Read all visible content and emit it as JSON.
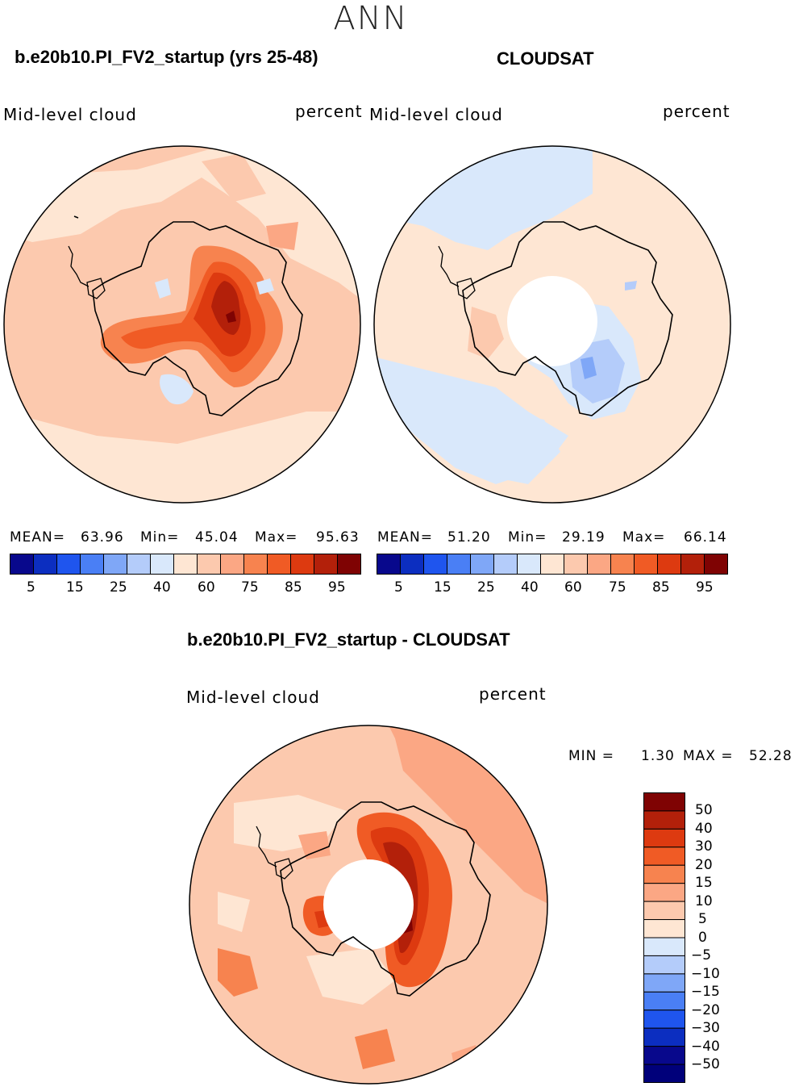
{
  "figure_title": "ANN",
  "panels": [
    {
      "title": "b.e20b10.PI_FV2_startup (yrs 25-48)",
      "variable": "Mid-level cloud",
      "units": "percent",
      "stats": {
        "mean_label": "MEAN=",
        "mean": "63.96",
        "min_label": "Min=",
        "min": "45.04",
        "max_label": "Max=",
        "max": "95.63"
      },
      "colorbar_ticks": [
        "5",
        "15",
        "25",
        "40",
        "60",
        "75",
        "85",
        "95"
      ]
    },
    {
      "title": "CLOUDSAT",
      "variable": "Mid-level cloud",
      "units": "percent",
      "stats": {
        "mean_label": "MEAN=",
        "mean": "51.20",
        "min_label": "Min=",
        "min": "29.19",
        "max_label": "Max=",
        "max": "66.14"
      },
      "colorbar_ticks": [
        "5",
        "15",
        "25",
        "40",
        "60",
        "75",
        "85",
        "95"
      ]
    }
  ],
  "diff_panel": {
    "title": "b.e20b10.PI_FV2_startup - CLOUDSAT",
    "variable": "Mid-level cloud",
    "units": "percent",
    "min_label": "MIN =",
    "min": "1.30",
    "max_label": "MAX =",
    "max": "52.28",
    "colorbar_ticks": [
      "50",
      "40",
      "30",
      "20",
      "15",
      "10",
      "5",
      "0",
      "−5",
      "−10",
      "−15",
      "−20",
      "−30",
      "−40",
      "−50"
    ]
  },
  "colors": {
    "abs_scale": [
      "#08088c",
      "#0c2ec0",
      "#1f55ee",
      "#4a7ff5",
      "#7fa7f7",
      "#b4ccfa",
      "#d9e8fb",
      "#fee6d3",
      "#fcc9ae",
      "#fba784",
      "#f7834f",
      "#f05b25",
      "#dd3a10",
      "#b3200a",
      "#7f0303"
    ],
    "diff_scale": [
      "#7f0303",
      "#b3200a",
      "#dd3a10",
      "#f05b25",
      "#f7834f",
      "#fba784",
      "#fcc9ae",
      "#fee6d3",
      "#d9e8fb",
      "#b4ccfa",
      "#7fa7f7",
      "#4a7ff5",
      "#1f55ee",
      "#0c2ec0",
      "#08088c",
      "#00007a"
    ]
  }
}
